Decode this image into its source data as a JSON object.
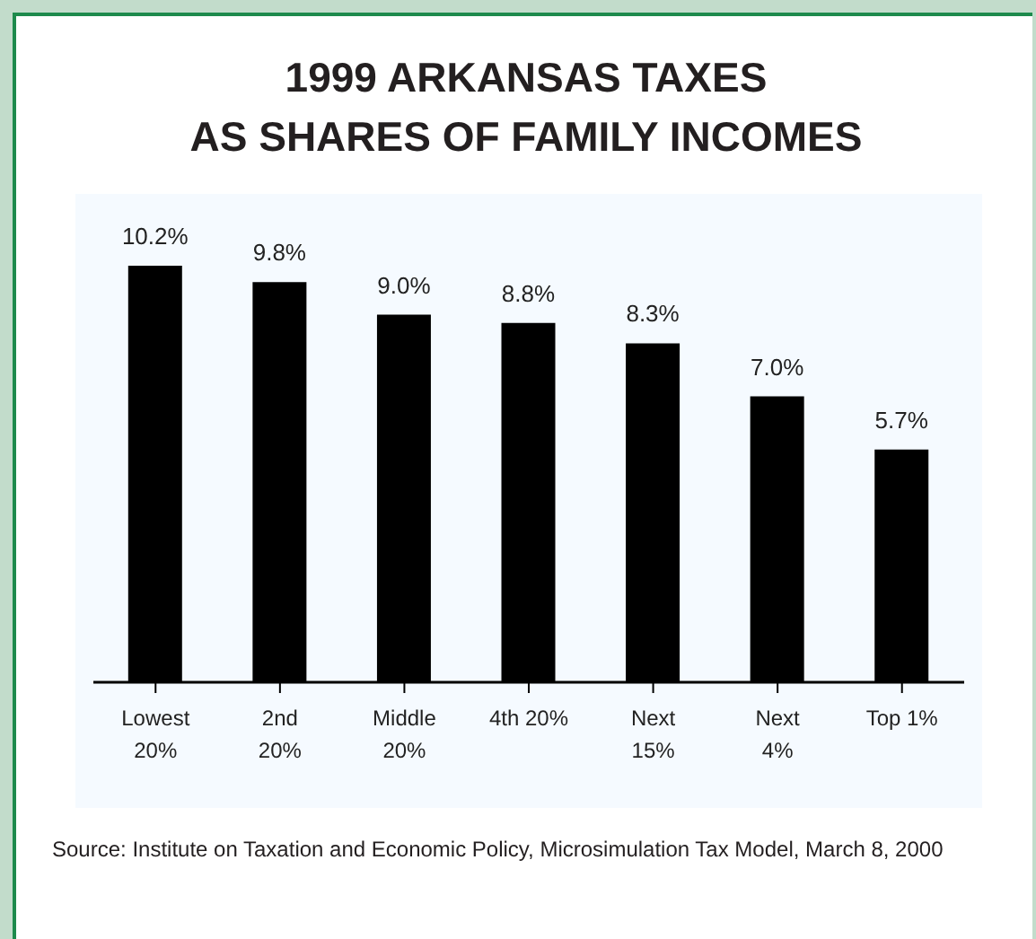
{
  "chart_data": {
    "type": "bar",
    "title": "1999 ARKANSAS TAXES\nAS SHARES OF FAMILY INCOMES",
    "categories": [
      "Lowest\n20%",
      "2nd\n20%",
      "Middle\n20%",
      "4th 20%",
      "Next\n15%",
      "Next\n4%",
      "Top 1%"
    ],
    "values": [
      10.2,
      9.8,
      9.0,
      8.8,
      8.3,
      7.0,
      5.7
    ],
    "value_labels": [
      "10.2%",
      "9.8%",
      "9.0%",
      "8.8%",
      "8.3%",
      "7.0%",
      "5.7%"
    ],
    "color": "#000000",
    "annotations": [
      "Source: Institute on Taxation and Economic Policy, Microsimulation Tax Model, March 8, 2000"
    ]
  }
}
